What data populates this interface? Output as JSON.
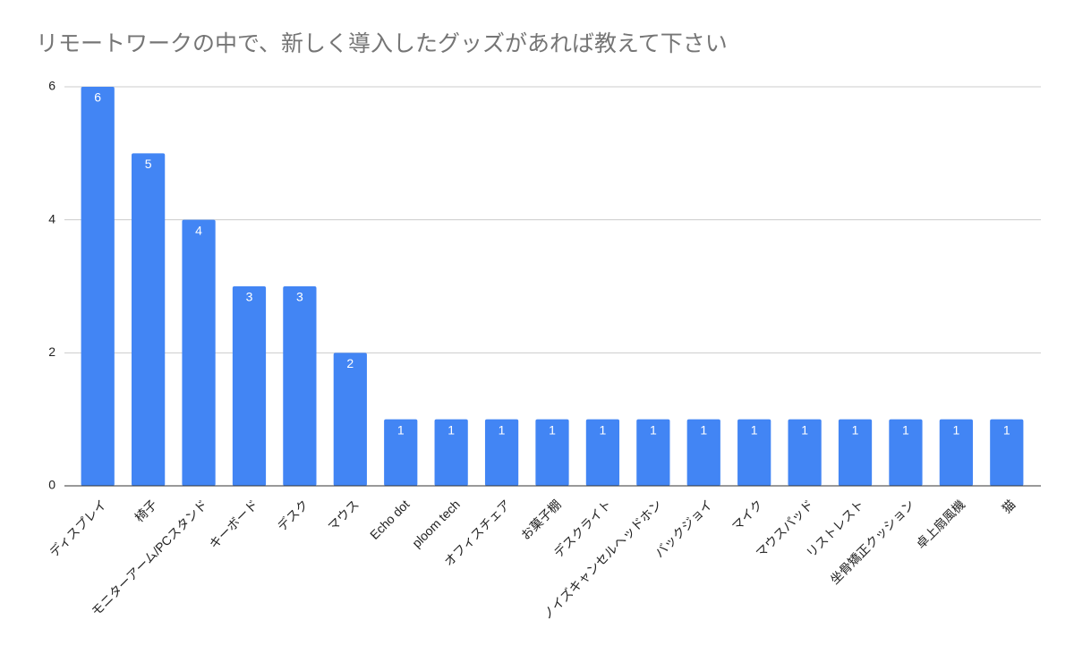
{
  "chart_data": {
    "type": "bar",
    "title": "リモートワークの中で、新しく導入したグッズがあれば教えて下さい",
    "categories": [
      "ディスプレイ",
      "椅子",
      "モニターアーム/PCスタンド",
      "キーボード",
      "デスク",
      "マウス",
      "Echo dot",
      "ploom tech",
      "オフィスチェア",
      "お菓子棚",
      "デスクライト",
      "ノイズキャンセルヘッドホン",
      "バックジョイ",
      "マイク",
      "マウスパッド",
      "リストレスト",
      "坐骨矯正クッション",
      "卓上扇風機",
      "猫"
    ],
    "values": [
      6,
      5,
      4,
      3,
      3,
      2,
      1,
      1,
      1,
      1,
      1,
      1,
      1,
      1,
      1,
      1,
      1,
      1,
      1
    ],
    "color": "#4285f4",
    "ylim": [
      0,
      6
    ],
    "yticks": [
      0,
      2,
      4,
      6
    ],
    "grid": true,
    "data_labels": true
  }
}
